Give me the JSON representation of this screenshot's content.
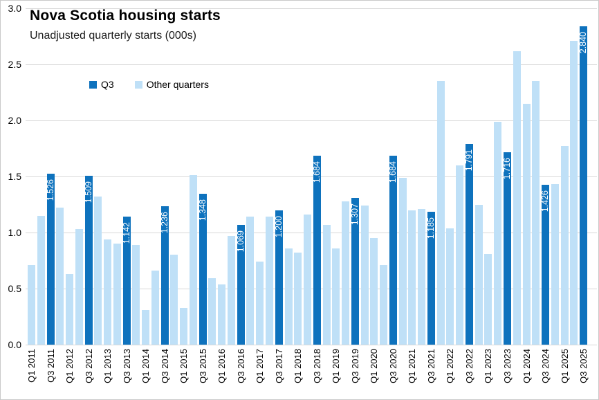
{
  "title": "Nova Scotia housing starts",
  "subtitle": "Unadjusted quarterly starts (000s)",
  "legend": {
    "q3_label": "Q3",
    "other_label": "Other quarters"
  },
  "colors": {
    "q3": "#0E72BD",
    "other": "#BFE0F7",
    "gridline": "#D8D8D8",
    "border": "#C9C9C9",
    "bar_label_text": "#FFFFFF"
  },
  "chart_data": {
    "type": "bar",
    "title": "Nova Scotia housing starts",
    "subtitle": "Unadjusted quarterly starts (000s)",
    "xlabel": "",
    "ylabel": "",
    "ylim": [
      0,
      3.0
    ],
    "yticks": [
      "0.0",
      "0.5",
      "1.0",
      "1.5",
      "2.0",
      "2.5",
      "3.0"
    ],
    "grid": true,
    "legend_position": "top-left-inside",
    "x_tick_rule": "labels shown for Q1 and Q3 only, rotated 90° reading bottom-to-top",
    "series": [
      {
        "name": "Q3",
        "color": "#0E72BD"
      },
      {
        "name": "Other quarters",
        "color": "#BFE0F7"
      }
    ],
    "points": [
      {
        "category": "Q1 2011",
        "value": 0.71,
        "series": "Other quarters"
      },
      {
        "category": "Q2 2011",
        "value": 1.15,
        "series": "Other quarters"
      },
      {
        "category": "Q3 2011",
        "value": 1.526,
        "series": "Q3",
        "data_label": "1.526"
      },
      {
        "category": "Q4 2011",
        "value": 1.22,
        "series": "Other quarters"
      },
      {
        "category": "Q1 2012",
        "value": 0.63,
        "series": "Other quarters"
      },
      {
        "category": "Q2 2012",
        "value": 1.03,
        "series": "Other quarters"
      },
      {
        "category": "Q3 2012",
        "value": 1.509,
        "series": "Q3",
        "data_label": "1.509"
      },
      {
        "category": "Q4 2012",
        "value": 1.32,
        "series": "Other quarters"
      },
      {
        "category": "Q1 2013",
        "value": 0.94,
        "series": "Other quarters"
      },
      {
        "category": "Q2 2013",
        "value": 0.9,
        "series": "Other quarters"
      },
      {
        "category": "Q3 2013",
        "value": 1.142,
        "series": "Q3",
        "data_label": "1.142"
      },
      {
        "category": "Q4 2013",
        "value": 0.89,
        "series": "Other quarters"
      },
      {
        "category": "Q1 2014",
        "value": 0.31,
        "series": "Other quarters"
      },
      {
        "category": "Q2 2014",
        "value": 0.66,
        "series": "Other quarters"
      },
      {
        "category": "Q3 2014",
        "value": 1.236,
        "series": "Q3",
        "data_label": "1.236"
      },
      {
        "category": "Q4 2014",
        "value": 0.8,
        "series": "Other quarters"
      },
      {
        "category": "Q1 2015",
        "value": 0.33,
        "series": "Other quarters"
      },
      {
        "category": "Q2 2015",
        "value": 1.51,
        "series": "Other quarters"
      },
      {
        "category": "Q3 2015",
        "value": 1.348,
        "series": "Q3",
        "data_label": "1.348"
      },
      {
        "category": "Q4 2015",
        "value": 0.59,
        "series": "Other quarters"
      },
      {
        "category": "Q1 2016",
        "value": 0.54,
        "series": "Other quarters"
      },
      {
        "category": "Q2 2016",
        "value": 0.97,
        "series": "Other quarters"
      },
      {
        "category": "Q3 2016",
        "value": 1.069,
        "series": "Q3",
        "data_label": "1.069"
      },
      {
        "category": "Q4 2016",
        "value": 1.14,
        "series": "Other quarters"
      },
      {
        "category": "Q1 2017",
        "value": 0.74,
        "series": "Other quarters"
      },
      {
        "category": "Q2 2017",
        "value": 1.14,
        "series": "Other quarters"
      },
      {
        "category": "Q3 2017",
        "value": 1.2,
        "series": "Q3",
        "data_label": "1.200"
      },
      {
        "category": "Q4 2017",
        "value": 0.86,
        "series": "Other quarters"
      },
      {
        "category": "Q1 2018",
        "value": 0.82,
        "series": "Other quarters"
      },
      {
        "category": "Q2 2018",
        "value": 1.16,
        "series": "Other quarters"
      },
      {
        "category": "Q3 2018",
        "value": 1.684,
        "series": "Q3",
        "data_label": "1.684"
      },
      {
        "category": "Q4 2018",
        "value": 1.07,
        "series": "Other quarters"
      },
      {
        "category": "Q1 2019",
        "value": 0.86,
        "series": "Other quarters"
      },
      {
        "category": "Q2 2019",
        "value": 1.28,
        "series": "Other quarters"
      },
      {
        "category": "Q3 2019",
        "value": 1.307,
        "series": "Q3",
        "data_label": "1.307"
      },
      {
        "category": "Q4 2019",
        "value": 1.24,
        "series": "Other quarters"
      },
      {
        "category": "Q1 2020",
        "value": 0.95,
        "series": "Other quarters"
      },
      {
        "category": "Q2 2020",
        "value": 0.71,
        "series": "Other quarters"
      },
      {
        "category": "Q3 2020",
        "value": 1.684,
        "series": "Q3",
        "data_label": "1.684"
      },
      {
        "category": "Q4 2020",
        "value": 1.49,
        "series": "Other quarters"
      },
      {
        "category": "Q1 2021",
        "value": 1.2,
        "series": "Other quarters"
      },
      {
        "category": "Q2 2021",
        "value": 1.21,
        "series": "Other quarters"
      },
      {
        "category": "Q3 2021",
        "value": 1.185,
        "series": "Q3",
        "data_label": "1.185"
      },
      {
        "category": "Q4 2021",
        "value": 2.35,
        "series": "Other quarters"
      },
      {
        "category": "Q1 2022",
        "value": 1.04,
        "series": "Other quarters"
      },
      {
        "category": "Q2 2022",
        "value": 1.6,
        "series": "Other quarters"
      },
      {
        "category": "Q3 2022",
        "value": 1.791,
        "series": "Q3",
        "data_label": "1.791"
      },
      {
        "category": "Q4 2022",
        "value": 1.25,
        "series": "Other quarters"
      },
      {
        "category": "Q1 2023",
        "value": 0.81,
        "series": "Other quarters"
      },
      {
        "category": "Q2 2023",
        "value": 1.99,
        "series": "Other quarters"
      },
      {
        "category": "Q3 2023",
        "value": 1.716,
        "series": "Q3",
        "data_label": "1.716"
      },
      {
        "category": "Q4 2023",
        "value": 2.62,
        "series": "Other quarters"
      },
      {
        "category": "Q1 2024",
        "value": 2.15,
        "series": "Other quarters"
      },
      {
        "category": "Q2 2024",
        "value": 2.35,
        "series": "Other quarters"
      },
      {
        "category": "Q3 2024",
        "value": 1.426,
        "series": "Q3",
        "data_label": "1.426"
      },
      {
        "category": "Q4 2024",
        "value": 1.43,
        "series": "Other quarters"
      },
      {
        "category": "Q1 2025",
        "value": 1.77,
        "series": "Other quarters"
      },
      {
        "category": "Q2 2025",
        "value": 2.71,
        "series": "Other quarters"
      },
      {
        "category": "Q3 2025",
        "value": 2.84,
        "series": "Q3",
        "data_label": "2.840"
      }
    ]
  }
}
